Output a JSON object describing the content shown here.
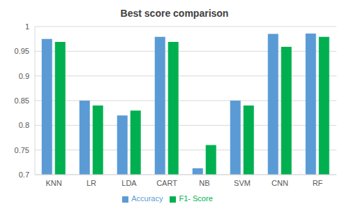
{
  "chart_data": {
    "type": "bar",
    "title": "Best score comparison",
    "categories": [
      "KNN",
      "LR",
      "LDA",
      "CART",
      "NB",
      "SVM",
      "CNN",
      "RF"
    ],
    "series": [
      {
        "name": "Accuracy",
        "color": "#5b9bd5",
        "values": [
          0.975,
          0.85,
          0.82,
          0.979,
          0.713,
          0.85,
          0.985,
          0.986
        ]
      },
      {
        "name": "F1- Score",
        "color": "#00b050",
        "values": [
          0.969,
          0.84,
          0.83,
          0.969,
          0.76,
          0.84,
          0.959,
          0.979
        ]
      }
    ],
    "ylim": [
      0.7,
      1
    ],
    "yticks": [
      0.7,
      0.75,
      0.8,
      0.85,
      0.9,
      0.95,
      1
    ],
    "grid": true,
    "legend": "bottom"
  }
}
